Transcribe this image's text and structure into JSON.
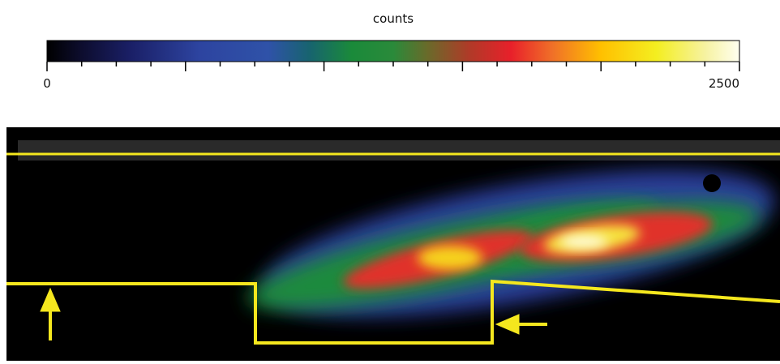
{
  "colorbar": {
    "label": "counts",
    "min": 0,
    "max": 2500
  }
}
